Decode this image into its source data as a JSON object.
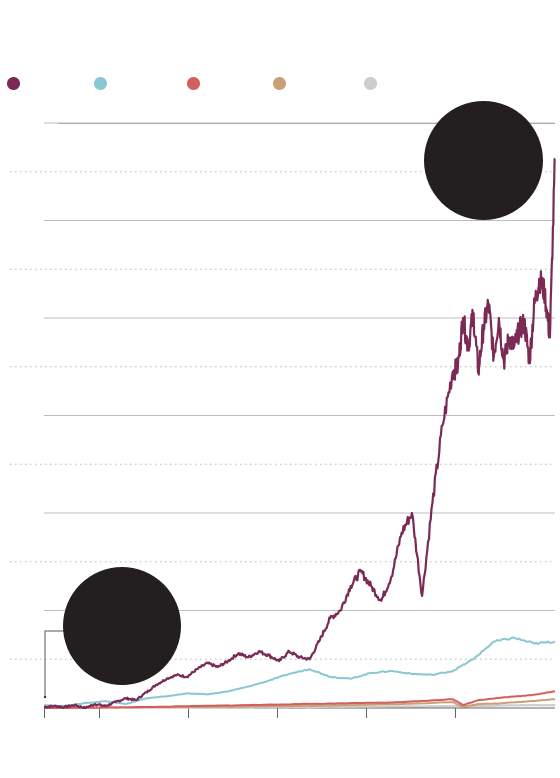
{
  "chart_data": {
    "type": "line",
    "title": "",
    "xlabel": "",
    "ylabel": "",
    "grid": true,
    "legend_placement": "top",
    "ylim": [
      0,
      700
    ],
    "y_major_ticks": [
      0,
      100,
      200,
      300,
      400,
      500,
      600
    ],
    "y_minor_ticks": [
      50,
      150,
      250,
      350,
      450,
      550
    ],
    "x_tick_count": 6,
    "series": [
      {
        "color": "#7a2a55",
        "x": [
          0,
          0.02,
          0.04,
          0.06,
          0.08,
          0.1,
          0.12,
          0.14,
          0.16,
          0.18,
          0.2,
          0.22,
          0.24,
          0.26,
          0.28,
          0.3,
          0.32,
          0.34,
          0.36,
          0.38,
          0.4,
          0.42,
          0.44,
          0.46,
          0.48,
          0.5,
          0.52,
          0.54,
          0.56,
          0.58,
          0.6,
          0.62,
          0.64,
          0.66,
          0.68,
          0.7,
          0.72,
          0.74,
          0.76,
          0.78,
          0.8,
          0.81,
          0.82,
          0.83,
          0.84,
          0.85,
          0.86,
          0.87,
          0.88,
          0.89,
          0.9,
          0.91,
          0.92,
          0.93,
          0.94,
          0.95,
          0.96,
          0.97,
          0.98,
          0.99,
          1.0
        ],
        "values": [
          1,
          2,
          1,
          3,
          0,
          4,
          2,
          6,
          10,
          8,
          16,
          24,
          30,
          34,
          32,
          40,
          46,
          42,
          48,
          56,
          52,
          58,
          54,
          48,
          58,
          52,
          50,
          70,
          92,
          100,
          125,
          140,
          125,
          110,
          135,
          180,
          200,
          115,
          210,
          290,
          345,
          350,
          400,
          370,
          405,
          345,
          390,
          415,
          360,
          400,
          355,
          380,
          370,
          388,
          395,
          356,
          415,
          440,
          425,
          380,
          563
        ]
      },
      {
        "color": "#8ac6d4",
        "x": [
          0,
          0.04,
          0.08,
          0.12,
          0.16,
          0.2,
          0.24,
          0.28,
          0.32,
          0.36,
          0.4,
          0.44,
          0.48,
          0.52,
          0.56,
          0.6,
          0.64,
          0.68,
          0.72,
          0.76,
          0.8,
          0.84,
          0.88,
          0.92,
          0.96,
          1.0
        ],
        "values": [
          3,
          2,
          5,
          7,
          4,
          10,
          12,
          15,
          14,
          17,
          22,
          28,
          35,
          40,
          32,
          30,
          36,
          38,
          35,
          34,
          38,
          50,
          68,
          72,
          66,
          68
        ]
      },
      {
        "color": "#d35e5e",
        "x": [
          0,
          0.1,
          0.2,
          0.3,
          0.4,
          0.5,
          0.6,
          0.7,
          0.8,
          0.82,
          0.85,
          0.9,
          0.95,
          1.0
        ],
        "values": [
          0,
          0.5,
          1,
          2,
          3,
          4,
          5,
          6,
          9,
          3,
          8,
          11,
          13,
          17
        ]
      },
      {
        "color": "#c9a077",
        "x": [
          0,
          0.1,
          0.2,
          0.3,
          0.4,
          0.5,
          0.6,
          0.7,
          0.8,
          0.82,
          0.85,
          0.9,
          0.95,
          1.0
        ],
        "values": [
          0,
          0.3,
          0.6,
          1,
          1.5,
          2,
          3,
          4,
          6,
          1,
          4,
          5,
          7,
          9
        ]
      },
      {
        "color": "#cccccc",
        "x": [
          0,
          0.1,
          0.2,
          0.3,
          0.4,
          0.5,
          0.6,
          0.7,
          0.8,
          0.85,
          0.9,
          0.95,
          1.0
        ],
        "values": [
          0,
          0.2,
          0.4,
          0.6,
          0.8,
          1,
          1.2,
          1.5,
          2,
          2,
          2.5,
          3,
          3
        ]
      }
    ]
  }
}
